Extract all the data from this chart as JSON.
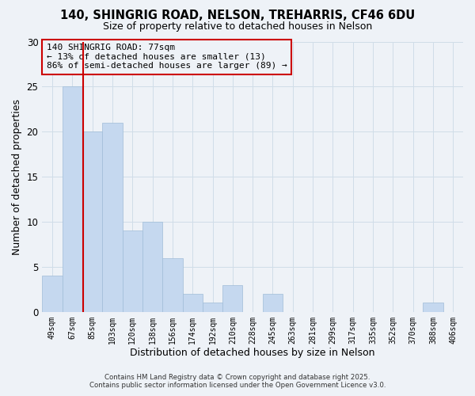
{
  "title1": "140, SHINGRIG ROAD, NELSON, TREHARRIS, CF46 6DU",
  "title2": "Size of property relative to detached houses in Nelson",
  "xlabel": "Distribution of detached houses by size in Nelson",
  "ylabel": "Number of detached properties",
  "bar_labels": [
    "49sqm",
    "67sqm",
    "85sqm",
    "103sqm",
    "120sqm",
    "138sqm",
    "156sqm",
    "174sqm",
    "192sqm",
    "210sqm",
    "228sqm",
    "245sqm",
    "263sqm",
    "281sqm",
    "299sqm",
    "317sqm",
    "335sqm",
    "352sqm",
    "370sqm",
    "388sqm",
    "406sqm"
  ],
  "bar_values": [
    4,
    25,
    20,
    21,
    9,
    10,
    6,
    2,
    1,
    3,
    0,
    2,
    0,
    0,
    0,
    0,
    0,
    0,
    0,
    1,
    0
  ],
  "bar_color": "#c5d8ef",
  "bar_edge_color": "#a0bcd8",
  "grid_color": "#d0dde8",
  "background_color": "#eef2f7",
  "plot_bg_color": "#eef2f7",
  "ylim": [
    0,
    30
  ],
  "yticks": [
    0,
    5,
    10,
    15,
    20,
    25,
    30
  ],
  "property_label": "140 SHINGRIG ROAD: 77sqm",
  "annotation_line1": "← 13% of detached houses are smaller (13)",
  "annotation_line2": "86% of semi-detached houses are larger (89) →",
  "vline_color": "#cc0000",
  "box_color": "#cc0000",
  "footnote1": "Contains HM Land Registry data © Crown copyright and database right 2025.",
  "footnote2": "Contains public sector information licensed under the Open Government Licence v3.0."
}
